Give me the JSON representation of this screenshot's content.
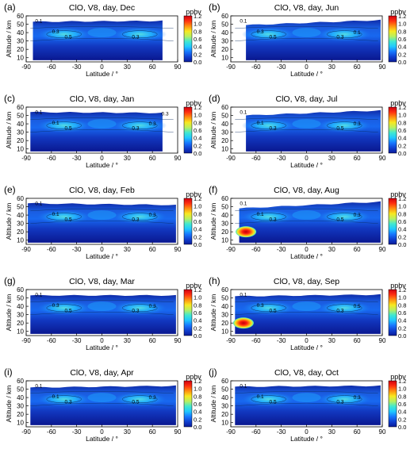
{
  "figure": {
    "colorbar_unit": "ppbv",
    "colorbar_ticks": [
      "0.0",
      "0.2",
      "0.4",
      "0.6",
      "0.8",
      "1.0",
      "1.2"
    ],
    "colormap": [
      "#0a1a9a",
      "#1040d0",
      "#1878ff",
      "#20c8ff",
      "#40e8d0",
      "#b8f060",
      "#f8e820",
      "#ff9010",
      "#ff3010",
      "#d00010"
    ]
  },
  "chart_data": [
    {
      "panel": "(a)",
      "title": "ClO, V8, day, Dec",
      "type": "contour",
      "xlabel": "Latitude / °",
      "ylabel": "Altitude / km",
      "xlim": [
        -90,
        90
      ],
      "ylim": [
        5,
        60
      ],
      "xticks": [
        "-90",
        "-60",
        "-30",
        "0",
        "30",
        "60",
        "90"
      ],
      "yticks": [
        "10",
        "20",
        "30",
        "40",
        "50",
        "60"
      ],
      "data_lat_range": [
        -82,
        72
      ],
      "top_km": [
        53,
        54
      ],
      "contour_labels": [
        "0.1",
        "0.3",
        "0.5",
        "0.3"
      ],
      "hotspot": null
    },
    {
      "panel": "(b)",
      "title": "ClO, V8, day, Jun",
      "type": "contour",
      "xlabel": "Latitude / °",
      "ylabel": "Altitude / km",
      "xlim": [
        -90,
        90
      ],
      "ylim": [
        5,
        60
      ],
      "xticks": [
        "-90",
        "-60",
        "-30",
        "0",
        "30",
        "60",
        "90"
      ],
      "yticks": [
        "10",
        "20",
        "30",
        "40",
        "50",
        "60"
      ],
      "data_lat_range": [
        -72,
        88
      ],
      "top_km": [
        49,
        55
      ],
      "contour_labels": [
        "0.1",
        "0.3",
        "0.5",
        "0.3",
        "0.1"
      ],
      "hotspot": null
    },
    {
      "panel": "(c)",
      "title": "ClO, V8, day, Jan",
      "type": "contour",
      "xlabel": "Latitude / °",
      "ylabel": "Altitude / km",
      "xlim": [
        -90,
        90
      ],
      "ylim": [
        5,
        60
      ],
      "xticks": [
        "-90",
        "-60",
        "-30",
        "0",
        "30",
        "60",
        "90"
      ],
      "yticks": [
        "10",
        "20",
        "30",
        "40",
        "50",
        "60"
      ],
      "data_lat_range": [
        -85,
        72
      ],
      "top_km": [
        54,
        53
      ],
      "contour_labels": [
        "0.1",
        "0.1",
        "0.5",
        "0.3",
        "0.3",
        "0.3"
      ],
      "hotspot": null
    },
    {
      "panel": "(d)",
      "title": "ClO, V8, day, Jul",
      "type": "contour",
      "xlabel": "Latitude / °",
      "ylabel": "Altitude / km",
      "xlim": [
        -90,
        90
      ],
      "ylim": [
        5,
        60
      ],
      "xticks": [
        "-90",
        "-60",
        "-30",
        "0",
        "30",
        "60",
        "90"
      ],
      "yticks": [
        "10",
        "20",
        "30",
        "40",
        "50",
        "60"
      ],
      "data_lat_range": [
        -72,
        88
      ],
      "top_km": [
        50,
        56
      ],
      "contour_labels": [
        "0.1",
        "0.1",
        "0.3",
        "0.5",
        "0.3"
      ],
      "hotspot": null
    },
    {
      "panel": "(e)",
      "title": "ClO, V8, day, Feb",
      "type": "contour",
      "xlabel": "Latitude / °",
      "ylabel": "Altitude / km",
      "xlim": [
        -90,
        90
      ],
      "ylim": [
        5,
        60
      ],
      "xticks": [
        "-90",
        "-60",
        "-30",
        "0",
        "30",
        "60",
        "90"
      ],
      "yticks": [
        "10",
        "20",
        "30",
        "40",
        "50",
        "60"
      ],
      "data_lat_range": [
        -88,
        88
      ],
      "top_km": [
        54,
        52
      ],
      "contour_labels": [
        "0.1",
        "0.1",
        "0.5",
        "0.3",
        "0.3"
      ],
      "hotspot": null
    },
    {
      "panel": "(f)",
      "title": "ClO, V8, day, Aug",
      "type": "contour",
      "xlabel": "Latitude / °",
      "ylabel": "Altitude / km",
      "xlim": [
        -90,
        90
      ],
      "ylim": [
        5,
        60
      ],
      "xticks": [
        "-90",
        "-60",
        "-30",
        "0",
        "30",
        "60",
        "90"
      ],
      "yticks": [
        "10",
        "20",
        "30",
        "40",
        "50",
        "60"
      ],
      "data_lat_range": [
        -80,
        88
      ],
      "top_km": [
        48,
        56
      ],
      "contour_labels": [
        "0.1",
        "0.1",
        "0.3",
        "0.5",
        "0.3"
      ],
      "hotspot": {
        "lat": -72,
        "alt_km": 20,
        "peak_ppbv": 1.2
      }
    },
    {
      "panel": "(g)",
      "title": "ClO, V8, day, Mar",
      "type": "contour",
      "xlabel": "Latitude / °",
      "ylabel": "Altitude / km",
      "xlim": [
        -90,
        90
      ],
      "ylim": [
        5,
        60
      ],
      "xticks": [
        "-90",
        "-60",
        "-30",
        "0",
        "30",
        "60",
        "90"
      ],
      "yticks": [
        "10",
        "20",
        "30",
        "40",
        "50",
        "60"
      ],
      "data_lat_range": [
        -85,
        88
      ],
      "top_km": [
        53,
        53
      ],
      "contour_labels": [
        "0.1",
        "0.3",
        "0.5",
        "0.3",
        "0.3"
      ],
      "hotspot": null
    },
    {
      "panel": "(h)",
      "title": "ClO, V8, day, Sep",
      "type": "contour",
      "xlabel": "Latitude / °",
      "ylabel": "Altitude / km",
      "xlim": [
        -90,
        90
      ],
      "ylim": [
        5,
        60
      ],
      "xticks": [
        "-90",
        "-60",
        "-30",
        "0",
        "30",
        "60",
        "90"
      ],
      "yticks": [
        "10",
        "20",
        "30",
        "40",
        "50",
        "60"
      ],
      "data_lat_range": [
        -85,
        88
      ],
      "top_km": [
        52,
        54
      ],
      "contour_labels": [
        "0.1",
        "0.3",
        "0.5",
        "0.3",
        "0.5"
      ],
      "hotspot": {
        "lat": -75,
        "alt_km": 20,
        "peak_ppbv": 1.2
      }
    },
    {
      "panel": "(i)",
      "title": "ClO, V8, day, Apr",
      "type": "contour",
      "xlabel": "Latitude / °",
      "ylabel": "Altitude / km",
      "xlim": [
        -90,
        90
      ],
      "ylim": [
        5,
        60
      ],
      "xticks": [
        "-90",
        "-60",
        "-30",
        "0",
        "30",
        "60",
        "90"
      ],
      "yticks": [
        "10",
        "20",
        "30",
        "40",
        "50",
        "60"
      ],
      "data_lat_range": [
        -85,
        88
      ],
      "top_km": [
        52,
        54
      ],
      "contour_labels": [
        "0.1",
        "0.1",
        "0.3",
        "0.5",
        "0.3"
      ],
      "hotspot": null
    },
    {
      "panel": "(j)",
      "title": "ClO, V8, day, Oct",
      "type": "contour",
      "xlabel": "Latitude / °",
      "ylabel": "Altitude / km",
      "xlim": [
        -90,
        90
      ],
      "ylim": [
        5,
        60
      ],
      "xticks": [
        "-90",
        "-60",
        "-30",
        "0",
        "30",
        "60",
        "90"
      ],
      "yticks": [
        "10",
        "20",
        "30",
        "40",
        "50",
        "60"
      ],
      "data_lat_range": [
        -85,
        88
      ],
      "top_km": [
        53,
        54
      ],
      "contour_labels": [
        "0.1",
        "0.1",
        "0.5",
        "0.3",
        "0.3"
      ],
      "hotspot": null
    }
  ]
}
